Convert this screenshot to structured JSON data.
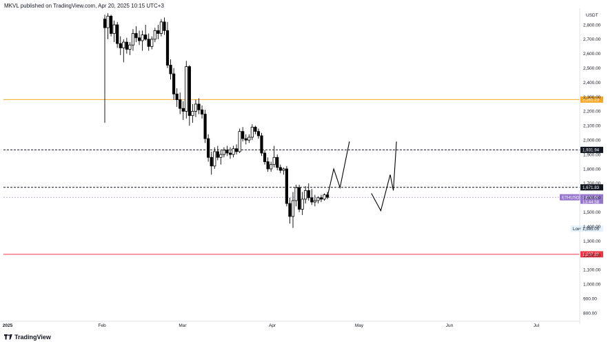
{
  "header": {
    "publisher_text": "MKVL published on TradingView.com, Apr 20, 2025 10:15 UTC+3"
  },
  "footer": {
    "brand": "TradingView"
  },
  "colors": {
    "bull": "#ffffff",
    "bear": "#000000",
    "wick": "#000000",
    "orange_line": "#f5a623",
    "red_line": "#f23645",
    "purple_line": "#b39ddb",
    "dashed_line": "#131722"
  },
  "chart_data": {
    "type": "candlestick",
    "symbol_tag": "ETHUSDT",
    "y_unit": "USDT",
    "y_ticks": [
      "2,800.00",
      "2,700.00",
      "2,600.00",
      "2,500.00",
      "2,400.00",
      "2,300.00",
      "2,200.00",
      "2,100.00",
      "2,000.00",
      "1,900.00",
      "1,800.00",
      "1,700.00",
      "1,600.00",
      "1,500.00",
      "1,400.00",
      "1,300.00",
      "1,200.00",
      "1,100.00",
      "1,000.00",
      "900.00",
      "800.00"
    ],
    "x_ticks": [
      "2025",
      "Feb",
      "Mar",
      "Apr",
      "May",
      "Jun",
      "Jul"
    ],
    "levels": [
      {
        "id": "orange",
        "value": 2281.23,
        "label": "2,281.23",
        "style": "solid"
      },
      {
        "id": "upper_dashed",
        "value": 1931.94,
        "label": "1,931.94",
        "style": "dashed"
      },
      {
        "id": "lower_dashed",
        "value": 1671.83,
        "label": "1,671.83",
        "style": "dashed"
      },
      {
        "id": "red",
        "value": 1207.29,
        "label": "1,207.29",
        "style": "solid"
      }
    ],
    "current_price": {
      "value": 1603.0,
      "label": "1,603.00",
      "countdown": "13:44:58",
      "tag": "ETHUSDT"
    },
    "low_marker": {
      "label": "Low",
      "value": 1385.05,
      "value_label": "1,385.05"
    },
    "candles": [
      {
        "o": 2840,
        "h": 2870,
        "l": 2120,
        "c": 2780
      },
      {
        "o": 2780,
        "h": 2880,
        "l": 2700,
        "c": 2860
      },
      {
        "o": 2860,
        "h": 2870,
        "l": 2720,
        "c": 2740
      },
      {
        "o": 2740,
        "h": 2830,
        "l": 2680,
        "c": 2800
      },
      {
        "o": 2800,
        "h": 2820,
        "l": 2640,
        "c": 2670
      },
      {
        "o": 2670,
        "h": 2720,
        "l": 2590,
        "c": 2640
      },
      {
        "o": 2640,
        "h": 2700,
        "l": 2540,
        "c": 2680
      },
      {
        "o": 2680,
        "h": 2710,
        "l": 2600,
        "c": 2630
      },
      {
        "o": 2630,
        "h": 2680,
        "l": 2590,
        "c": 2660
      },
      {
        "o": 2660,
        "h": 2770,
        "l": 2620,
        "c": 2740
      },
      {
        "o": 2740,
        "h": 2790,
        "l": 2680,
        "c": 2710
      },
      {
        "o": 2710,
        "h": 2760,
        "l": 2660,
        "c": 2690
      },
      {
        "o": 2690,
        "h": 2760,
        "l": 2620,
        "c": 2730
      },
      {
        "o": 2730,
        "h": 2800,
        "l": 2690,
        "c": 2700
      },
      {
        "o": 2700,
        "h": 2740,
        "l": 2620,
        "c": 2650
      },
      {
        "o": 2650,
        "h": 2720,
        "l": 2630,
        "c": 2700
      },
      {
        "o": 2700,
        "h": 2780,
        "l": 2680,
        "c": 2760
      },
      {
        "o": 2760,
        "h": 2800,
        "l": 2700,
        "c": 2740
      },
      {
        "o": 2740,
        "h": 2840,
        "l": 2720,
        "c": 2820
      },
      {
        "o": 2820,
        "h": 2850,
        "l": 2730,
        "c": 2760
      },
      {
        "o": 2760,
        "h": 2820,
        "l": 2500,
        "c": 2520
      },
      {
        "o": 2520,
        "h": 2560,
        "l": 2420,
        "c": 2460
      },
      {
        "o": 2460,
        "h": 2500,
        "l": 2280,
        "c": 2320
      },
      {
        "o": 2320,
        "h": 2360,
        "l": 2230,
        "c": 2280
      },
      {
        "o": 2280,
        "h": 2330,
        "l": 2180,
        "c": 2220
      },
      {
        "o": 2220,
        "h": 2270,
        "l": 2140,
        "c": 2200
      },
      {
        "o": 2200,
        "h": 2550,
        "l": 2150,
        "c": 2510
      },
      {
        "o": 2510,
        "h": 2520,
        "l": 2100,
        "c": 2170
      },
      {
        "o": 2170,
        "h": 2250,
        "l": 2120,
        "c": 2200
      },
      {
        "o": 2200,
        "h": 2280,
        "l": 2160,
        "c": 2250
      },
      {
        "o": 2250,
        "h": 2290,
        "l": 2180,
        "c": 2210
      },
      {
        "o": 2210,
        "h": 2240,
        "l": 2150,
        "c": 2180
      },
      {
        "o": 2180,
        "h": 2210,
        "l": 1980,
        "c": 2010
      },
      {
        "o": 2010,
        "h": 2040,
        "l": 1850,
        "c": 1880
      },
      {
        "o": 1880,
        "h": 1920,
        "l": 1760,
        "c": 1820
      },
      {
        "o": 1820,
        "h": 1950,
        "l": 1800,
        "c": 1920
      },
      {
        "o": 1920,
        "h": 1960,
        "l": 1860,
        "c": 1880
      },
      {
        "o": 1880,
        "h": 1930,
        "l": 1830,
        "c": 1900
      },
      {
        "o": 1900,
        "h": 1950,
        "l": 1880,
        "c": 1930
      },
      {
        "o": 1930,
        "h": 1960,
        "l": 1890,
        "c": 1910
      },
      {
        "o": 1910,
        "h": 1950,
        "l": 1870,
        "c": 1900
      },
      {
        "o": 1900,
        "h": 1960,
        "l": 1880,
        "c": 1940
      },
      {
        "o": 1940,
        "h": 1970,
        "l": 1900,
        "c": 1920
      },
      {
        "o": 1920,
        "h": 2080,
        "l": 1910,
        "c": 2060
      },
      {
        "o": 2060,
        "h": 2090,
        "l": 1990,
        "c": 2010
      },
      {
        "o": 2010,
        "h": 2040,
        "l": 1970,
        "c": 2000
      },
      {
        "o": 2000,
        "h": 2040,
        "l": 1980,
        "c": 2020
      },
      {
        "o": 2020,
        "h": 2110,
        "l": 2000,
        "c": 2090
      },
      {
        "o": 2090,
        "h": 2100,
        "l": 2040,
        "c": 2060
      },
      {
        "o": 2060,
        "h": 2080,
        "l": 2010,
        "c": 2030
      },
      {
        "o": 2030,
        "h": 2050,
        "l": 1890,
        "c": 1910
      },
      {
        "o": 1910,
        "h": 1930,
        "l": 1830,
        "c": 1850
      },
      {
        "o": 1850,
        "h": 1880,
        "l": 1780,
        "c": 1800
      },
      {
        "o": 1800,
        "h": 1850,
        "l": 1780,
        "c": 1830
      },
      {
        "o": 1830,
        "h": 1960,
        "l": 1810,
        "c": 1880
      },
      {
        "o": 1880,
        "h": 1900,
        "l": 1790,
        "c": 1810
      },
      {
        "o": 1810,
        "h": 1830,
        "l": 1770,
        "c": 1790
      },
      {
        "o": 1790,
        "h": 1810,
        "l": 1760,
        "c": 1800
      },
      {
        "o": 1800,
        "h": 1820,
        "l": 1540,
        "c": 1560
      },
      {
        "o": 1560,
        "h": 1600,
        "l": 1420,
        "c": 1470
      },
      {
        "o": 1470,
        "h": 1640,
        "l": 1390,
        "c": 1580
      },
      {
        "o": 1580,
        "h": 1690,
        "l": 1540,
        "c": 1670
      },
      {
        "o": 1670,
        "h": 1690,
        "l": 1500,
        "c": 1520
      },
      {
        "o": 1520,
        "h": 1640,
        "l": 1480,
        "c": 1590
      },
      {
        "o": 1590,
        "h": 1680,
        "l": 1560,
        "c": 1650
      },
      {
        "o": 1650,
        "h": 1700,
        "l": 1580,
        "c": 1600
      },
      {
        "o": 1600,
        "h": 1660,
        "l": 1550,
        "c": 1570
      },
      {
        "o": 1570,
        "h": 1620,
        "l": 1540,
        "c": 1580
      },
      {
        "o": 1580,
        "h": 1610,
        "l": 1560,
        "c": 1600
      },
      {
        "o": 1600,
        "h": 1620,
        "l": 1570,
        "c": 1590
      },
      {
        "o": 1590,
        "h": 1630,
        "l": 1580,
        "c": 1620
      },
      {
        "o": 1620,
        "h": 1640,
        "l": 1590,
        "c": 1603
      }
    ],
    "projection_paths": [
      [
        {
          "i": 71,
          "v": 1610
        },
        {
          "i": 73,
          "v": 1800
        },
        {
          "i": 75,
          "v": 1670
        },
        {
          "i": 78,
          "v": 1990
        }
      ],
      [
        {
          "i": 85,
          "v": 1630
        },
        {
          "i": 88,
          "v": 1510
        },
        {
          "i": 91,
          "v": 1760
        },
        {
          "i": 92,
          "v": 1650
        },
        {
          "i": 93,
          "v": 1990
        }
      ]
    ]
  }
}
